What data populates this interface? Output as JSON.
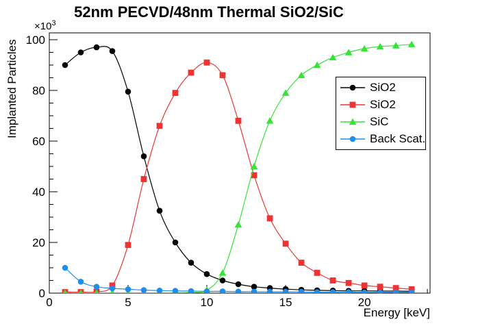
{
  "figure": {
    "background": "#ffffff",
    "frame_color": "#000000"
  },
  "axes": {
    "x": {
      "title": "Energy [keV]",
      "ticks": [
        0,
        5,
        10,
        15,
        20
      ],
      "minor_step": 1,
      "range": [
        0,
        24.17
      ]
    },
    "y": {
      "title": "Implanted Particles",
      "ticks": [
        0,
        20,
        40,
        60,
        80,
        100
      ],
      "minor_step": 5,
      "range": [
        0,
        102.7
      ],
      "multiplier_base": "×10",
      "multiplier_exp": "3"
    }
  },
  "chart_data": {
    "type": "line",
    "title": "52nm PECVD/48nm Thermal SiO2/SiC",
    "xlabel": "Energy [keV]",
    "ylabel": "Implanted Particles",
    "y_unit_multiplier": "×10^3",
    "xlim": [
      0,
      24.17
    ],
    "ylim": [
      0,
      102700
    ],
    "grid": false,
    "legend_position": "middle-right",
    "x": [
      1,
      2,
      3,
      4,
      5,
      6,
      7,
      8,
      9,
      10,
      11,
      12,
      13,
      14,
      15,
      16,
      17,
      18,
      19,
      20,
      21,
      22,
      23
    ],
    "values_unit": "thousands of particles",
    "series": [
      {
        "name": "SiO2",
        "color": "#000000",
        "marker": "circle",
        "values": [
          90,
          95,
          97,
          95.5,
          79.5,
          54,
          32.5,
          20,
          12,
          7.5,
          5,
          3.5,
          2.5,
          2,
          1.6,
          1.3,
          1.1,
          1.0,
          0.9,
          0.9,
          0.8,
          0.8,
          0.7
        ]
      },
      {
        "name": "SiO2",
        "color": "#ee3333",
        "marker": "square",
        "values": [
          0.4,
          0.4,
          0.5,
          3,
          19,
          45,
          66,
          79,
          87,
          91,
          86,
          68,
          46.5,
          29.5,
          19.5,
          12,
          8,
          5,
          4,
          3,
          2.5,
          2,
          1.5
        ]
      },
      {
        "name": "SiC",
        "color": "#35e435",
        "marker": "triangle",
        "values": [
          0.1,
          0.1,
          0.1,
          0.1,
          0.1,
          0.1,
          0.1,
          0.2,
          0.3,
          1.2,
          8,
          27,
          50,
          68,
          79,
          86,
          90,
          93,
          95,
          96.5,
          97.3,
          97.7,
          98.2
        ]
      },
      {
        "name": "Back Scat.",
        "color": "#1f8deb",
        "marker": "circle",
        "values": [
          10,
          4.5,
          2.5,
          1.9,
          1.5,
          1.2,
          1.0,
          0.9,
          0.8,
          0.7,
          0.7,
          0.6,
          0.6,
          0.5,
          0.5,
          0.5,
          0.4,
          0.4,
          0.4,
          0.3,
          0.3,
          0.3,
          0.3
        ]
      }
    ]
  }
}
